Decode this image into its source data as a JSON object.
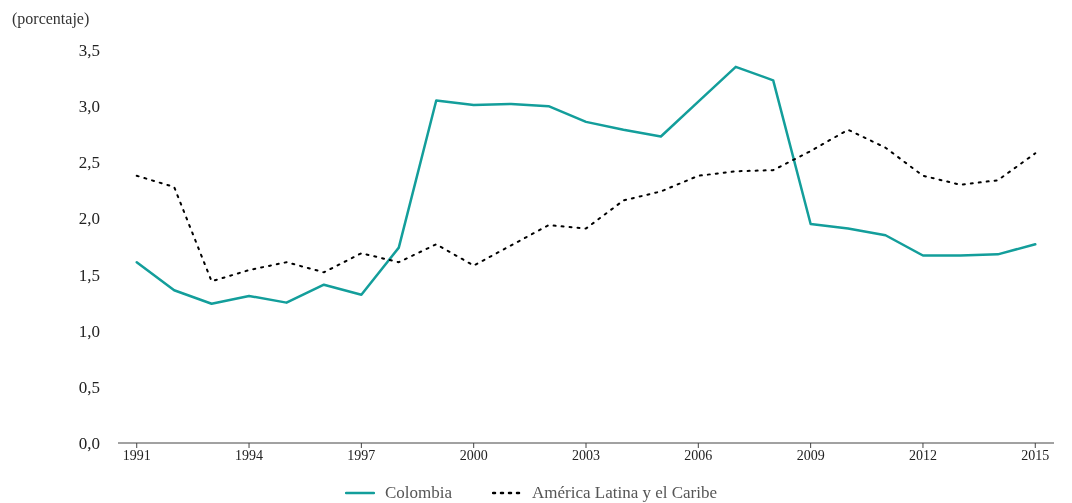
{
  "chart_data": {
    "type": "line",
    "ylabel": "(porcentaje)",
    "x": [
      1991,
      1992,
      1993,
      1994,
      1995,
      1996,
      1997,
      1998,
      1999,
      2000,
      2001,
      2002,
      2003,
      2004,
      2005,
      2006,
      2007,
      2008,
      2009,
      2010,
      2011,
      2012,
      2013,
      2014,
      2015
    ],
    "series": [
      {
        "name": "Colombia",
        "color": "#139e9b",
        "line_style": "solid",
        "values": [
          1.61,
          1.36,
          1.24,
          1.31,
          1.25,
          1.41,
          1.32,
          1.74,
          3.05,
          3.01,
          3.02,
          3.0,
          2.86,
          2.79,
          2.73,
          3.04,
          3.35,
          3.23,
          1.95,
          1.91,
          1.85,
          1.67,
          1.67,
          1.68,
          1.77
        ]
      },
      {
        "name": "América Latina y el Caribe",
        "color": "#000000",
        "line_style": "dotted",
        "values": [
          2.38,
          2.28,
          1.44,
          1.54,
          1.61,
          1.52,
          1.69,
          1.61,
          1.77,
          1.58,
          1.76,
          1.94,
          1.91,
          2.16,
          2.24,
          2.38,
          2.42,
          2.43,
          2.6,
          2.79,
          2.63,
          2.38,
          2.3,
          2.34,
          2.58
        ]
      }
    ],
    "xlim": [
      1990.5,
      2015.5
    ],
    "xticks": [
      1991,
      1994,
      1997,
      2000,
      2003,
      2006,
      2009,
      2012,
      2015
    ],
    "ylim": [
      0,
      3.5
    ],
    "yticks": [
      {
        "value": 0,
        "label": "0,0"
      },
      {
        "value": 0.5,
        "label": "0,5"
      },
      {
        "value": 1,
        "label": "1,0"
      },
      {
        "value": 1.5,
        "label": "1,5"
      },
      {
        "value": 2,
        "label": "2,0"
      },
      {
        "value": 2.5,
        "label": "2,5"
      },
      {
        "value": 3,
        "label": "3,0"
      },
      {
        "value": 3.5,
        "label": "3,5"
      }
    ],
    "grid": false,
    "legend": "bottom",
    "marker": "none"
  }
}
